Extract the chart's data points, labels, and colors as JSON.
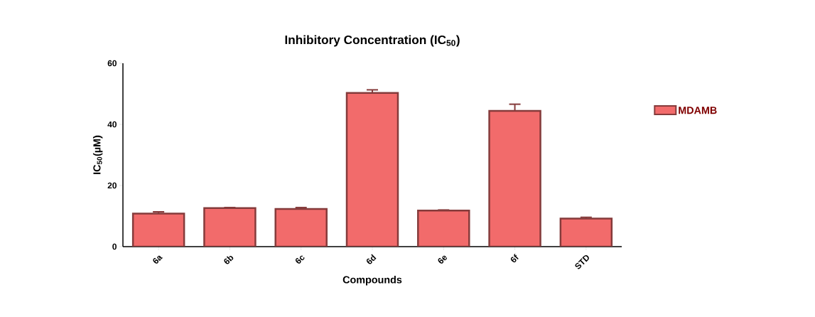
{
  "chart_data": {
    "type": "bar",
    "title": "Inhibitory Concentration (IC$_{50}$)",
    "xlabel": "Compounds",
    "ylabel": "IC$_{50}$(µM)",
    "categories": [
      "6a",
      "6b",
      "6c",
      "6d",
      "6e",
      "6f",
      "STD"
    ],
    "series": [
      {
        "name": "MDAMB",
        "color": "#f26b6b",
        "values": [
          10.8,
          12.6,
          12.3,
          50.3,
          11.8,
          44.4,
          9.2
        ],
        "errors": [
          0.6,
          0.2,
          0.5,
          1.0,
          0.2,
          2.2,
          0.4
        ]
      }
    ],
    "ylim": [
      0,
      60
    ],
    "yticks": [
      0,
      20,
      40,
      60
    ],
    "legend": "right"
  }
}
